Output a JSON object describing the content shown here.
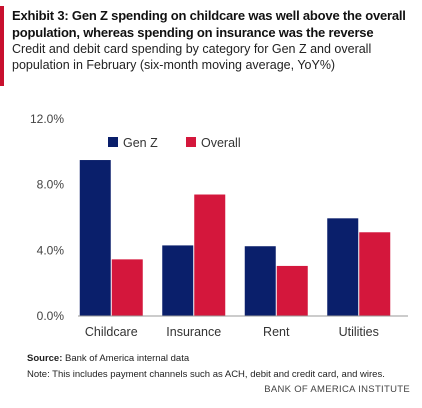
{
  "header": {
    "title": "Exhibit 3: Gen Z spending on childcare was well above the overall population, whereas spending on insurance was the reverse",
    "subtitle": "Credit and debit card spending by category for Gen Z and overall population in February (six-month moving average, YoY%)"
  },
  "colors": {
    "accent": "#c8102e",
    "gen_z": "#0a1f6b",
    "overall": "#d4173c"
  },
  "chart_data": {
    "type": "bar",
    "categories": [
      "Childcare",
      "Insurance",
      "Rent",
      "Utilities"
    ],
    "series": [
      {
        "name": "Gen Z",
        "values": [
          9.5,
          4.3,
          4.25,
          5.95
        ]
      },
      {
        "name": "Overall",
        "values": [
          3.45,
          7.4,
          3.05,
          5.1
        ]
      }
    ],
    "yticks": [
      "0.0%",
      "4.0%",
      "8.0%",
      "12.0%"
    ],
    "ylim": [
      0,
      12
    ],
    "legend_position": "top-left",
    "grid": false
  },
  "footer": {
    "source_label": "Source:",
    "source_text": " Bank of America internal data",
    "note": "Note: This includes payment channels such as ACH, debit and credit card, and wires.",
    "brand": "BANK OF AMERICA INSTITUTE"
  }
}
